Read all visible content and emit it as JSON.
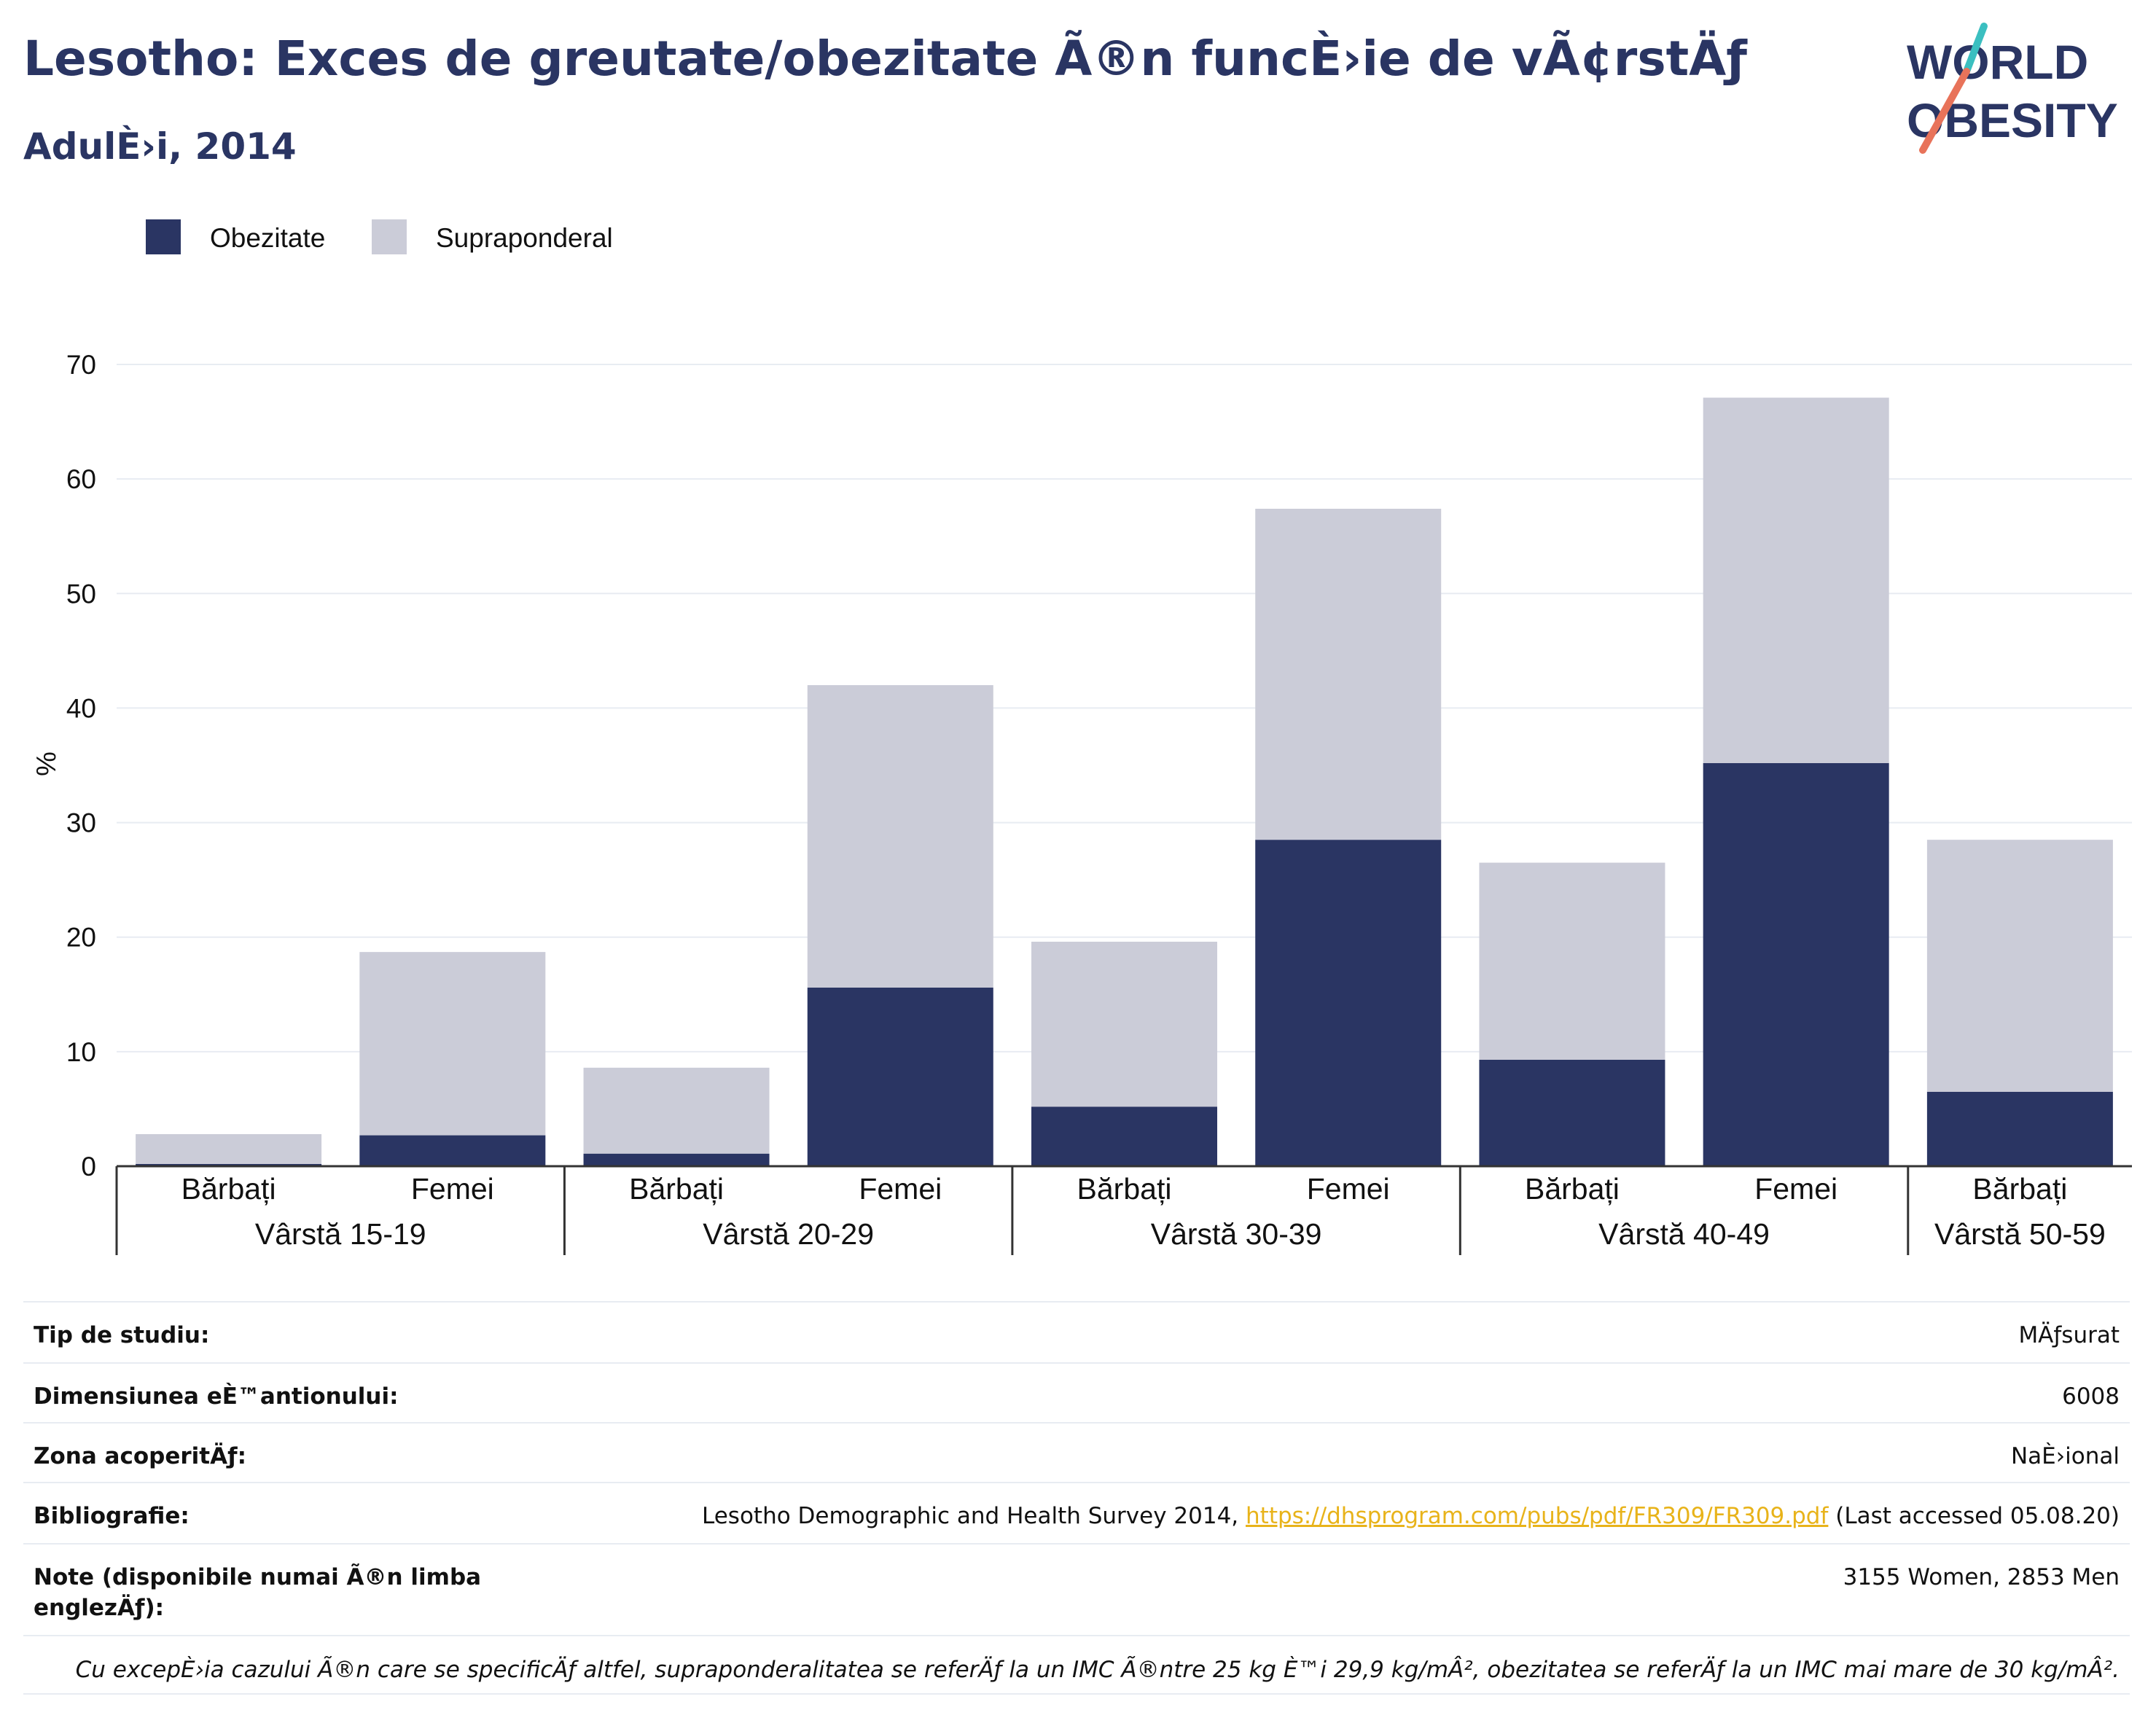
{
  "header": {
    "title": "Lesotho: Exces de greutate/obezitate Ã®n funcÈ›ie de vÃ¢rstÄƒ",
    "subtitle": "AdulÈ›i, 2014"
  },
  "logo": {
    "line1": "WORLD",
    "line2": "OBESITY",
    "colors": {
      "text": "#2a3563",
      "slash_teal": "#3bbfc0",
      "slash_coral": "#e8735a"
    }
  },
  "colors": {
    "obesity": "#2a3563",
    "overweight": "#cbccd8",
    "grid": "#e8ecf2",
    "axis": "#333333",
    "link": "#e8b31a"
  },
  "chart_data": {
    "type": "bar",
    "stacked": true,
    "ylabel": "%",
    "ylim": [
      0,
      70
    ],
    "yticks": [
      0,
      10,
      20,
      30,
      40,
      50,
      60,
      70
    ],
    "grid": true,
    "legend_position": "top-left",
    "groups": [
      {
        "label": "Vârstă 15-19",
        "categories": [
          "Bărbați",
          "Femei"
        ]
      },
      {
        "label": "Vârstă 20-29",
        "categories": [
          "Bărbați",
          "Femei"
        ]
      },
      {
        "label": "Vârstă 30-39",
        "categories": [
          "Bărbați",
          "Femei"
        ]
      },
      {
        "label": "Vârstă 40-49",
        "categories": [
          "Bărbați",
          "Femei"
        ]
      },
      {
        "label": "Vârstă 50-59",
        "categories": [
          "Bărbați"
        ]
      }
    ],
    "categories": [
      "Bărbați",
      "Femei",
      "Bărbați",
      "Femei",
      "Bărbați",
      "Femei",
      "Bărbați",
      "Femei",
      "Bărbați"
    ],
    "series": [
      {
        "name": "Obezitate",
        "values": [
          0.2,
          2.7,
          1.1,
          15.6,
          5.2,
          28.5,
          9.3,
          35.2,
          6.5
        ]
      },
      {
        "name": "Supraponderal",
        "values": [
          2.6,
          16.0,
          7.5,
          26.4,
          14.4,
          28.9,
          17.2,
          31.9,
          22.0
        ]
      }
    ]
  },
  "info": {
    "rows": [
      {
        "label": "Tip de studiu:",
        "value": "MÄƒsurat"
      },
      {
        "label": "Dimensiunea eÈ™antionului:",
        "value": "6008"
      },
      {
        "label": "Zona acoperitÄƒ:",
        "value": "NaÈ›ional"
      },
      {
        "label": "Bibliografie:",
        "value_prefix": "Lesotho Demographic and Health Survey 2014, ",
        "link": "https://dhsprogram.com/pubs/pdf/FR309/FR309.pdf",
        "value_suffix": " (Last accessed 05.08.20)"
      },
      {
        "label": "Note (disponibile numai Ã®n limba englezÄƒ):",
        "value": "3155 Women, 2853 Men"
      }
    ],
    "footnote": "Cu excepÈ›ia cazului Ã®n care se specificÄƒ altfel, supraponderalitatea se referÄƒ la un IMC Ã®ntre 25 kg È™i 29,9 kg/mÂ², obezitatea se referÄƒ la un IMC mai mare de 30 kg/mÂ²."
  }
}
